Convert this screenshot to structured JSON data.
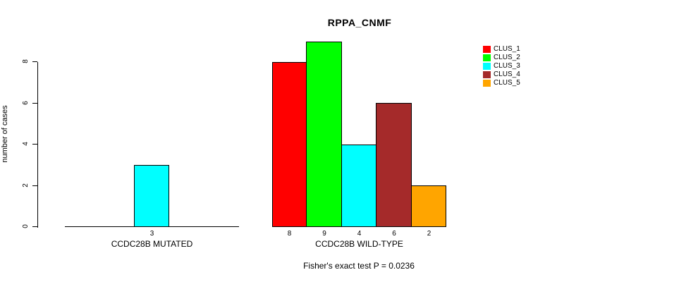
{
  "chart_data": {
    "type": "bar",
    "title": "RPPA_CNMF",
    "ylabel": "number of cases",
    "ylim": [
      0,
      9
    ],
    "yticks": [
      0,
      2,
      4,
      6,
      8
    ],
    "grid": false,
    "legend_position": "top-right",
    "series_names": [
      "CLUS_1",
      "CLUS_2",
      "CLUS_3",
      "CLUS_4",
      "CLUS_5"
    ],
    "series_colors": [
      "#FF0000",
      "#00FF00",
      "#00FFFF",
      "#A52A2A",
      "#FFA500"
    ],
    "groups": [
      {
        "label": "CCDC28B MUTATED",
        "values": [
          0,
          0,
          3,
          0,
          0
        ],
        "value_labels": [
          "",
          "",
          "3",
          "",
          ""
        ]
      },
      {
        "label": "CCDC28B WILD-TYPE",
        "values": [
          8,
          9,
          4,
          6,
          2
        ],
        "value_labels": [
          "8",
          "9",
          "4",
          "6",
          "2"
        ]
      }
    ],
    "annotation": "Fisher's exact test P = 0.0236"
  }
}
